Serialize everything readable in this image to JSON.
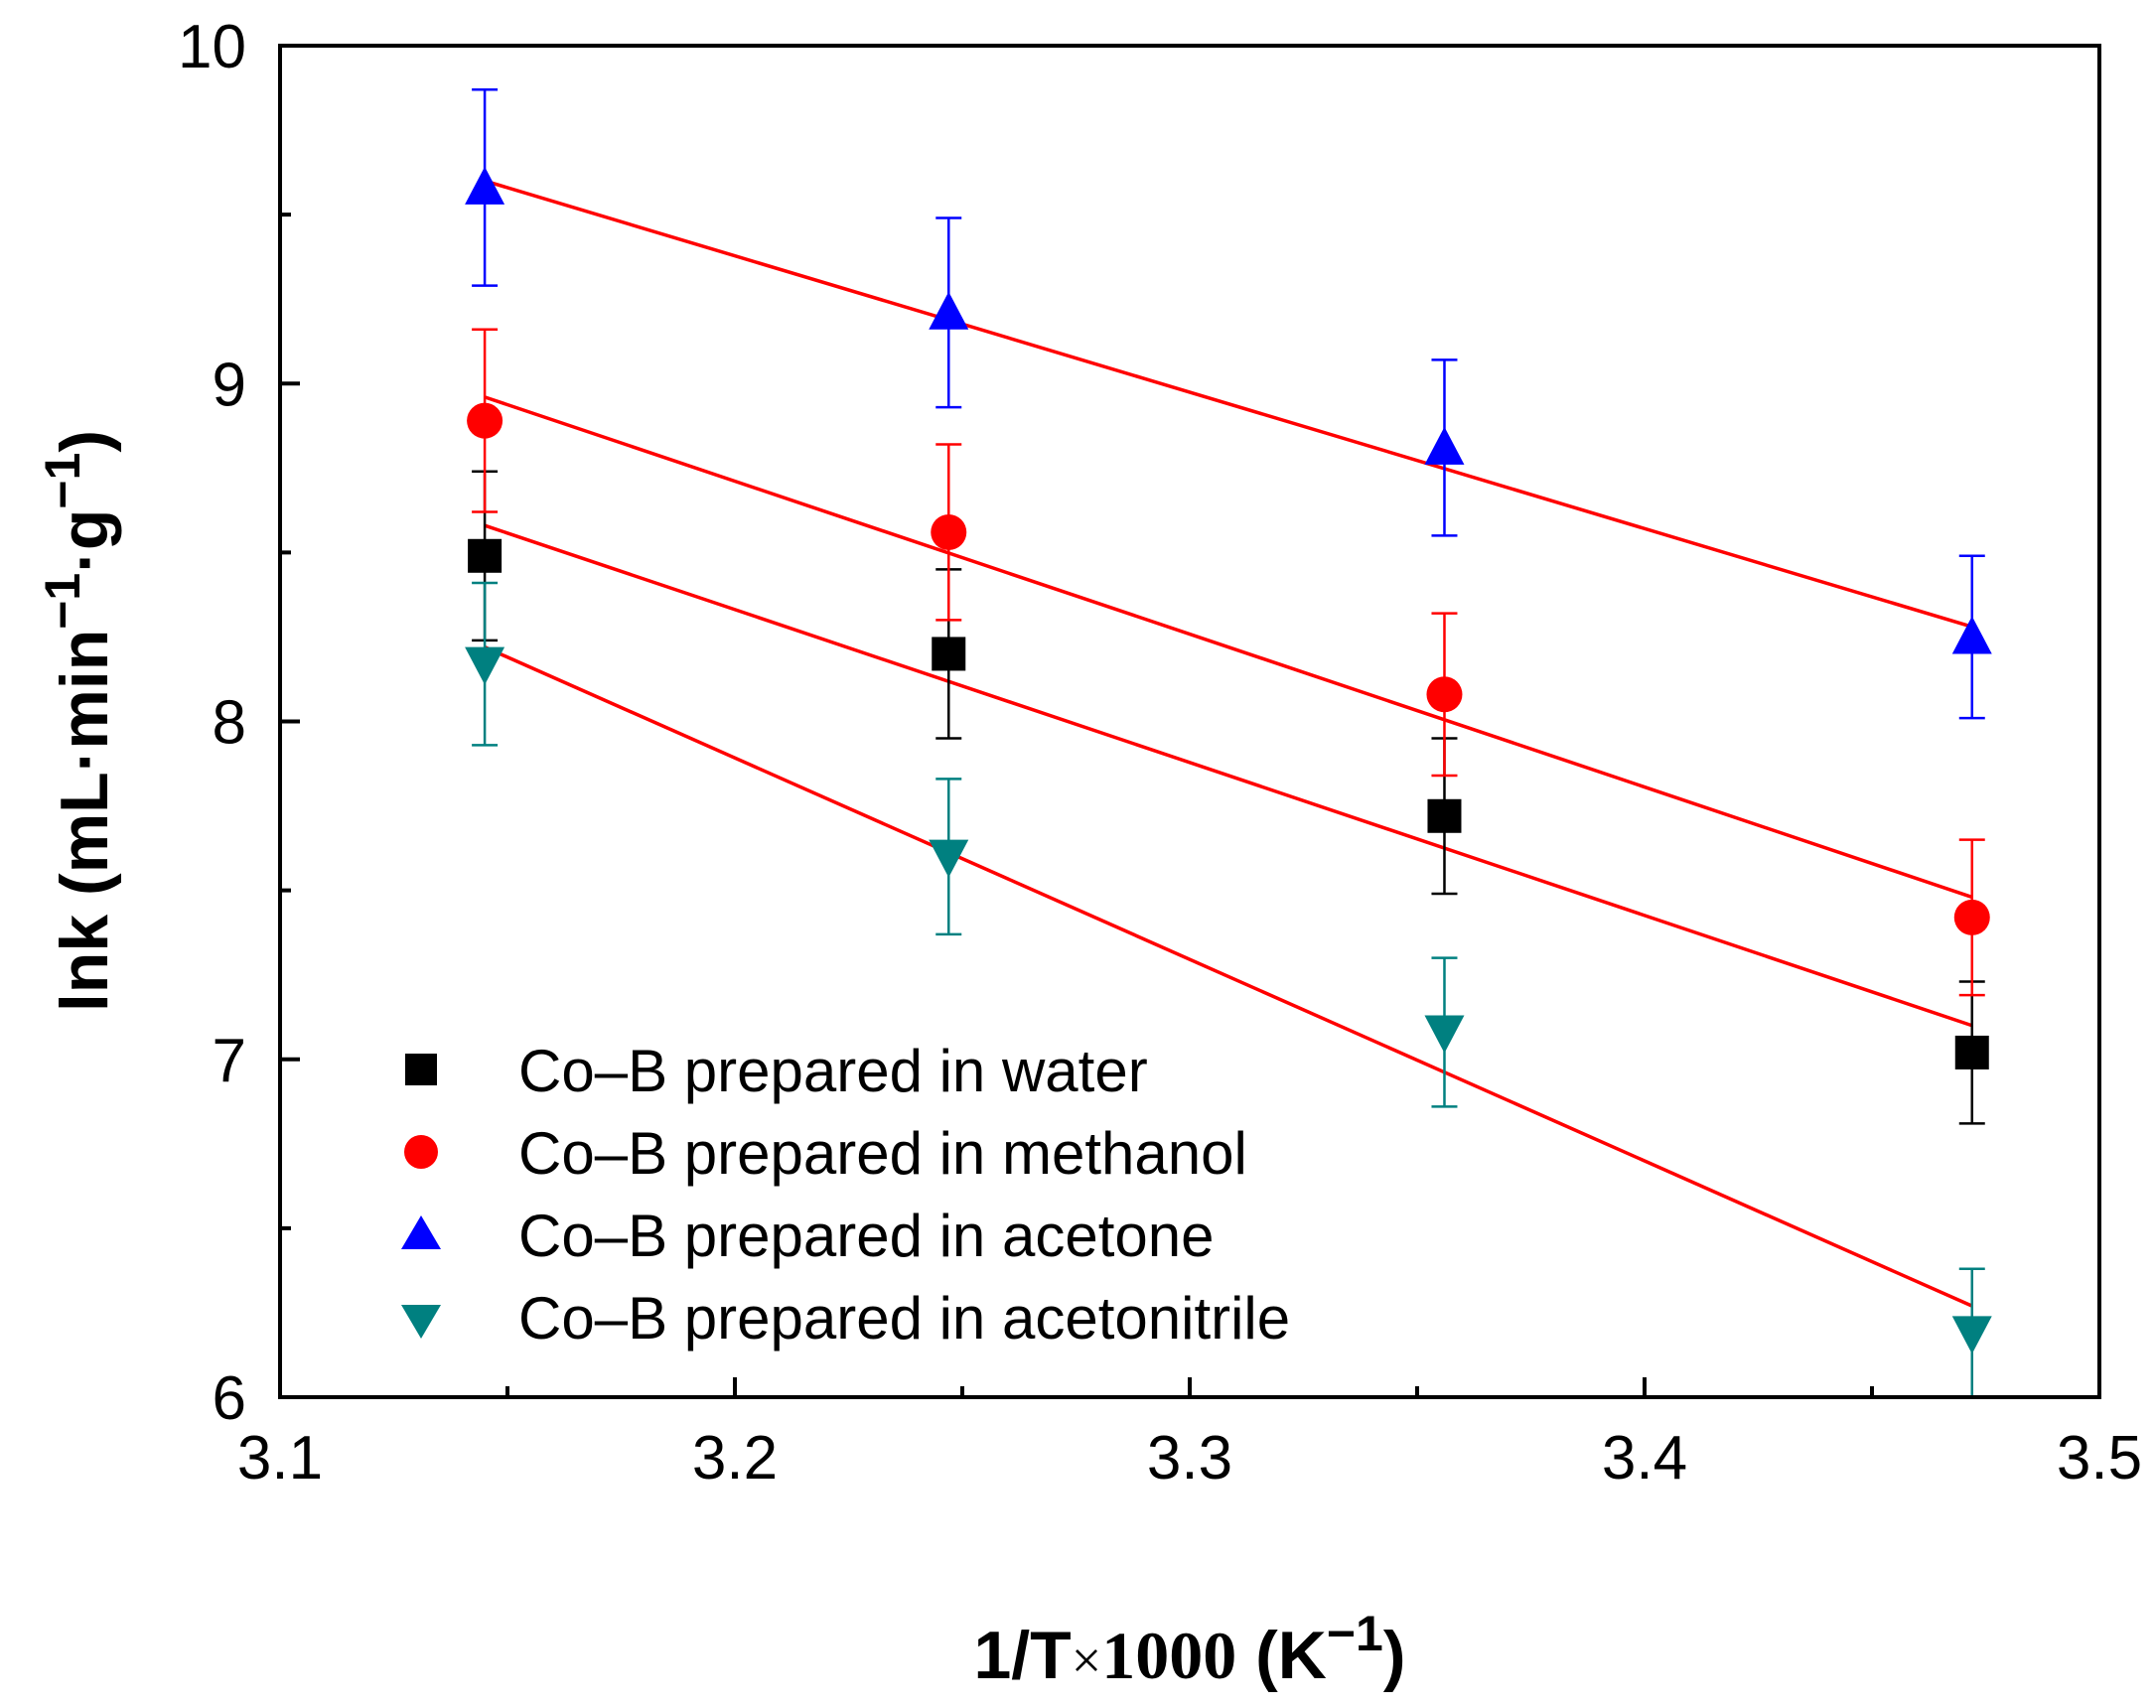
{
  "chart_data": {
    "type": "scatter",
    "title": "",
    "xlabel": {
      "prefix": "1/T",
      "times": "×",
      "number": "1000",
      "open": " (K",
      "sup": "−1",
      "close": ")"
    },
    "ylabel": {
      "prefix": "lnk (mL·min",
      "sup1": "−1",
      "mid": "·g",
      "sup2": "−1",
      "close": ")"
    },
    "xlim": [
      3.1,
      3.5
    ],
    "ylim": [
      6,
      10
    ],
    "xticks": [
      "3.1",
      "3.2",
      "3.3",
      "3.4",
      "3.5"
    ],
    "yticks": [
      "6",
      "7",
      "8",
      "9",
      "10"
    ],
    "grid": false,
    "legend_position": "bottom-left",
    "fit_line_color": "#ff0000",
    "series": [
      {
        "name": "Co–B prepared in water",
        "marker": "square",
        "color": "#000000",
        "x": [
          3.145,
          3.247,
          3.356,
          3.472
        ],
        "y": [
          8.49,
          8.2,
          7.72,
          7.02
        ],
        "err": [
          0.25,
          0.25,
          0.23,
          0.21
        ],
        "fit": [
          [
            3.145,
            8.58
          ],
          [
            3.472,
            7.1
          ]
        ]
      },
      {
        "name": "Co–B prepared in methanol",
        "marker": "circle",
        "color": "#ff0000",
        "x": [
          3.145,
          3.247,
          3.356,
          3.472
        ],
        "y": [
          8.89,
          8.56,
          8.08,
          7.42
        ],
        "err": [
          0.27,
          0.26,
          0.24,
          0.23
        ],
        "fit": [
          [
            3.145,
            8.96
          ],
          [
            3.472,
            7.48
          ]
        ]
      },
      {
        "name": "Co–B prepared in acetone",
        "marker": "triangle-up",
        "color": "#0000ff",
        "x": [
          3.145,
          3.247,
          3.356,
          3.472
        ],
        "y": [
          9.58,
          9.21,
          8.81,
          8.25
        ],
        "err": [
          0.29,
          0.28,
          0.26,
          0.24
        ],
        "fit": [
          [
            3.145,
            9.6
          ],
          [
            3.472,
            8.28
          ]
        ]
      },
      {
        "name": "Co–B prepared in acetonitrile",
        "marker": "triangle-down",
        "color": "#008080",
        "x": [
          3.145,
          3.247,
          3.356,
          3.472
        ],
        "y": [
          8.17,
          7.6,
          7.08,
          6.19
        ],
        "err": [
          0.24,
          0.23,
          0.22,
          0.19
        ],
        "fit": [
          [
            3.145,
            8.22
          ],
          [
            3.472,
            6.27
          ]
        ]
      }
    ]
  }
}
